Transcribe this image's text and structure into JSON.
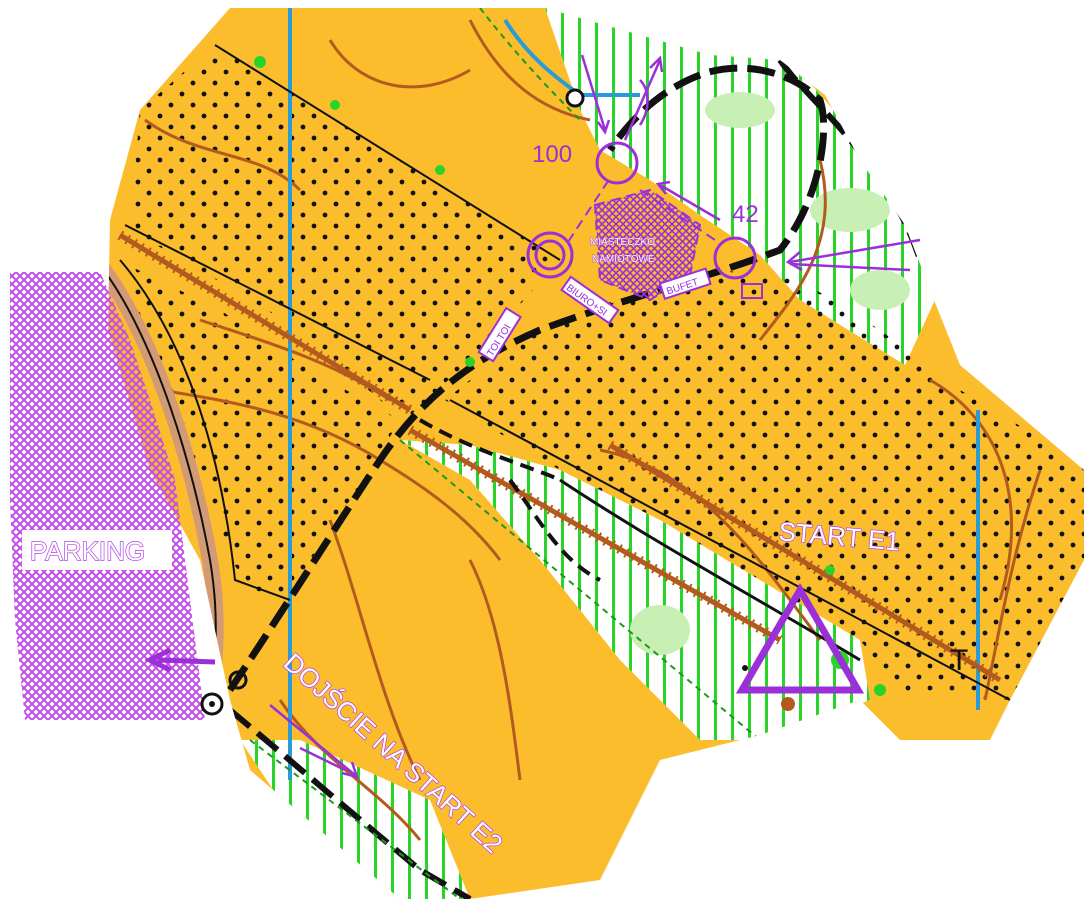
{
  "map": {
    "colors": {
      "open_land": "#fbbd2c",
      "forest": "#ffffff",
      "vegetation_stripes": "#28d428",
      "light_green": "#c8f0b4",
      "contour": "#b35b1e",
      "road_fill": "#d29b76",
      "track": "#111111",
      "water": "#2a9bd6",
      "overprint": "#9b30d9",
      "parking_hatch": "#c24ce8"
    },
    "labels": {
      "parking": "PARKING",
      "start_e1": "START E1",
      "path_to_start": "DOJŚCIE NA START E2",
      "tent_town_line1": "MIASTECZKO",
      "tent_town_line2": "NAMIOTOWE",
      "office": "BIURO+SI",
      "buffet": "BUFET",
      "toilets": "TOI TOI",
      "control_100": "100",
      "control_42": "42",
      "t_marker": "T"
    },
    "symbols": [
      "start-triangle",
      "finish-double-circle",
      "control-circle-100",
      "control-circle-42",
      "parking-arrow",
      "direction-arrows"
    ]
  }
}
